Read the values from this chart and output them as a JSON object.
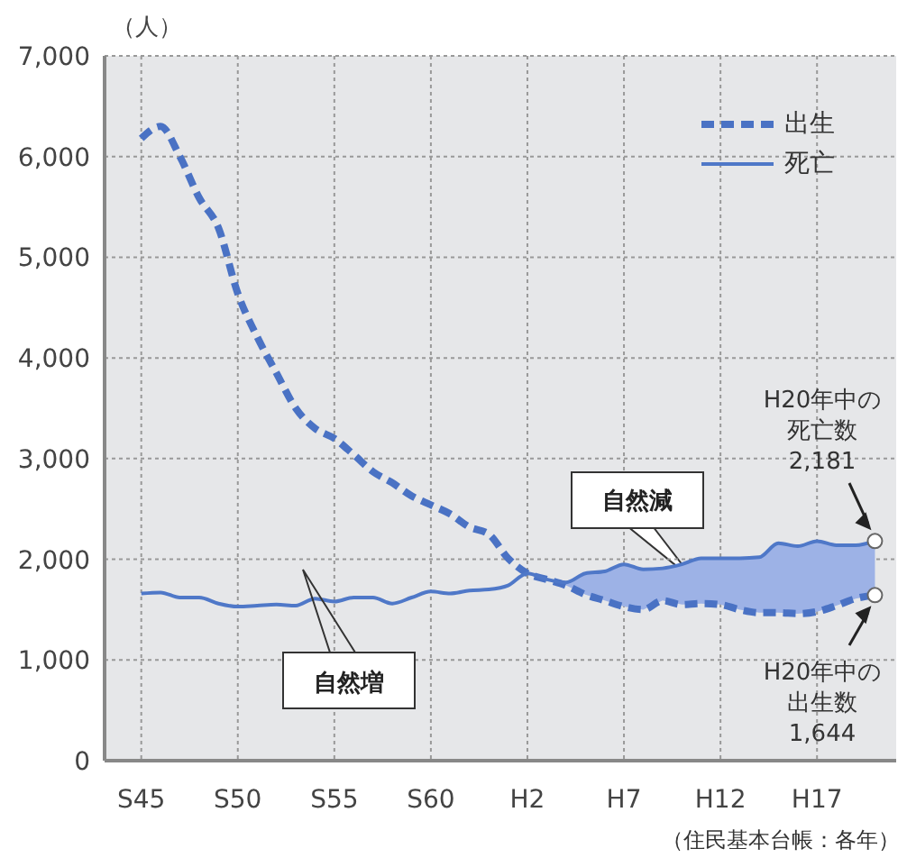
{
  "chart_data": {
    "type": "line",
    "ylabel": "（人）",
    "categories": [
      "S45",
      null,
      null,
      null,
      null,
      "S50",
      null,
      null,
      null,
      null,
      "S55",
      null,
      null,
      null,
      null,
      "S60",
      null,
      null,
      null,
      null,
      "H2",
      null,
      null,
      null,
      null,
      "H7",
      null,
      null,
      null,
      null,
      "H12",
      null,
      null,
      null,
      null,
      "H17",
      null,
      null,
      null
    ],
    "series": [
      {
        "name": "出生",
        "color": "#4a72c4",
        "line_style": "dashed",
        "values": [
          6180,
          6300,
          6000,
          5590,
          5290,
          4640,
          4210,
          3850,
          3500,
          3300,
          3200,
          3040,
          2870,
          2760,
          2630,
          2540,
          2450,
          2320,
          2250,
          2010,
          1860,
          1800,
          1740,
          1650,
          1590,
          1530,
          1500,
          1590,
          1550,
          1560,
          1550,
          1500,
          1470,
          1470,
          1460,
          1480,
          1540,
          1610,
          1644
        ]
      },
      {
        "name": "死亡",
        "color": "#4f78c8",
        "line_style": "solid",
        "values": [
          1660,
          1670,
          1620,
          1620,
          1560,
          1530,
          1540,
          1550,
          1540,
          1610,
          1580,
          1620,
          1620,
          1560,
          1620,
          1680,
          1660,
          1690,
          1700,
          1740,
          1860,
          1800,
          1770,
          1860,
          1880,
          1950,
          1900,
          1910,
          1950,
          2010,
          2010,
          2010,
          2020,
          2160,
          2130,
          2180,
          2140,
          2140,
          2181
        ],
        "lower": [
          null,
          null,
          null,
          null,
          null,
          null,
          null,
          null,
          null,
          null,
          null,
          null,
          null,
          null,
          null,
          null,
          null,
          null,
          null,
          null,
          1860,
          1800,
          1740,
          1650,
          1590,
          1530,
          1500,
          1590,
          1550,
          1560,
          1550,
          1500,
          1470,
          1470,
          1460,
          1480,
          1540,
          1610,
          1644
        ],
        "upper": [
          null,
          null,
          null,
          null,
          null,
          null,
          null,
          null,
          null,
          null,
          null,
          null,
          null,
          null,
          null,
          null,
          null,
          null,
          null,
          null,
          1860,
          1800,
          1770,
          1860,
          1880,
          1950,
          1900,
          1910,
          1950,
          2010,
          2010,
          2010,
          2020,
          2160,
          2130,
          2180,
          2140,
          2140,
          2181
        ]
      }
    ],
    "ylim": [
      0,
      7000
    ],
    "yticks": [
      0,
      {
        "value": 1000,
        "label": "1,000"
      },
      {
        "value": 2000,
        "label": "2,000"
      },
      {
        "value": 3000,
        "label": "3,000"
      },
      {
        "value": 4000,
        "label": "4,000"
      },
      {
        "value": 5000,
        "label": "5,000"
      },
      {
        "value": 6000,
        "label": "6,000"
      },
      {
        "value": 7000,
        "label": "7,000"
      }
    ],
    "grid": true,
    "legend": "top right",
    "annotations": [
      "自然増",
      "自然減",
      "H20年中の死亡数",
      "2,181",
      "H20年中の出生数",
      "1,644",
      "（住民基本台帳：各年）"
    ]
  }
}
